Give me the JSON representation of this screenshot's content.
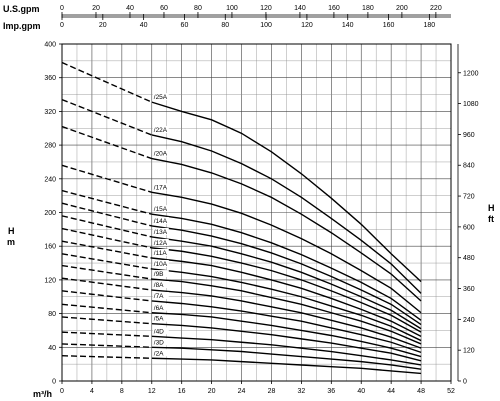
{
  "chart_data": {
    "type": "line",
    "axes": {
      "flow_m3h": {
        "label": "m³/h",
        "range": [
          0,
          52
        ],
        "ticks": [
          "0",
          "4",
          "8",
          "12",
          "16",
          "20",
          "24",
          "28",
          "32",
          "36",
          "40",
          "44",
          "48",
          "52"
        ]
      },
      "us_gpm": {
        "label": "U.S.gpm",
        "range": [
          0,
          228.9
        ],
        "ticks": [
          "0",
          "20",
          "40",
          "60",
          "80",
          "100",
          "120",
          "140",
          "160",
          "180",
          "200",
          "220"
        ]
      },
      "imp_gpm": {
        "label": "Imp.gpm",
        "range": [
          0,
          190.6
        ],
        "ticks": [
          "0",
          "20",
          "40",
          "60",
          "80",
          "100",
          "120",
          "140",
          "160",
          "180"
        ]
      },
      "head_m": {
        "label_line1": "H",
        "label_line2": "m",
        "range": [
          0,
          400
        ],
        "ticks": [
          "0",
          "40",
          "80",
          "120",
          "160",
          "200",
          "240",
          "280",
          "320",
          "360",
          "400"
        ]
      },
      "head_ft": {
        "label_line1": "H",
        "label_line2": "ft",
        "range": [
          0,
          1312
        ],
        "ticks": [
          "0",
          "120",
          "240",
          "360",
          "480",
          "600",
          "720",
          "840",
          "960",
          "1080",
          "1200"
        ]
      }
    },
    "grid": true,
    "dashed_range": [
      0,
      12
    ],
    "solid_range": [
      12,
      48
    ],
    "series": [
      {
        "name": "/25A",
        "x": [
          0,
          12,
          16,
          20,
          24,
          28,
          32,
          36,
          40,
          44,
          48
        ],
        "y": [
          378,
          331,
          320,
          310,
          294,
          272,
          246,
          217,
          186,
          151,
          118
        ]
      },
      {
        "name": "/22A",
        "x": [
          0,
          12,
          16,
          20,
          24,
          28,
          32,
          36,
          40,
          44,
          48
        ],
        "y": [
          334,
          292,
          284,
          273,
          258,
          240,
          218,
          193,
          167,
          139,
          104
        ]
      },
      {
        "name": "/20A",
        "x": [
          0,
          12,
          16,
          20,
          24,
          28,
          32,
          36,
          40,
          44,
          48
        ],
        "y": [
          302,
          264,
          257,
          247,
          234,
          218,
          198,
          176,
          152,
          127,
          95
        ]
      },
      {
        "name": "/17A",
        "x": [
          0,
          12,
          16,
          20,
          24,
          28,
          32,
          36,
          40,
          44,
          48
        ],
        "y": [
          256,
          224,
          218,
          210,
          199,
          185,
          169,
          151,
          131,
          110,
          81
        ]
      },
      {
        "name": "/15A",
        "x": [
          0,
          12,
          16,
          20,
          24,
          28,
          32,
          36,
          40,
          44,
          48
        ],
        "y": [
          226,
          198,
          193,
          186,
          176,
          164,
          150,
          134,
          117,
          98,
          72
        ]
      },
      {
        "name": "/14A",
        "x": [
          0,
          12,
          16,
          20,
          24,
          28,
          32,
          36,
          40,
          44,
          48
        ],
        "y": [
          211,
          184,
          179,
          172,
          163,
          152,
          139,
          124,
          108,
          91,
          67
        ]
      },
      {
        "name": "/13A",
        "x": [
          0,
          12,
          16,
          20,
          24,
          28,
          32,
          36,
          40,
          44,
          48
        ],
        "y": [
          196,
          171,
          166,
          160,
          151,
          141,
          129,
          115,
          100,
          84,
          62
        ]
      },
      {
        "name": "/12A",
        "x": [
          0,
          12,
          16,
          20,
          24,
          28,
          32,
          36,
          40,
          44,
          48
        ],
        "y": [
          181,
          158,
          154,
          148,
          140,
          131,
          120,
          107,
          93,
          78,
          58
        ]
      },
      {
        "name": "/11A",
        "x": [
          0,
          12,
          16,
          20,
          24,
          28,
          32,
          36,
          40,
          44,
          48
        ],
        "y": [
          166,
          146,
          142,
          137,
          129,
          120,
          110,
          98,
          85,
          71,
          53
        ]
      },
      {
        "name": "/10A",
        "x": [
          0,
          12,
          16,
          20,
          24,
          28,
          32,
          36,
          40,
          44,
          48
        ],
        "y": [
          151,
          133,
          129,
          124,
          117,
          109,
          100,
          89,
          78,
          65,
          48
        ]
      },
      {
        "name": "/9B",
        "x": [
          0,
          12,
          16,
          20,
          24,
          28,
          32,
          36,
          40,
          44,
          48
        ],
        "y": [
          137,
          121,
          118,
          113,
          107,
          99,
          91,
          81,
          71,
          59,
          44
        ]
      },
      {
        "name": "/8A",
        "x": [
          0,
          12,
          16,
          20,
          24,
          28,
          32,
          36,
          40,
          44,
          48
        ],
        "y": [
          122,
          108,
          105,
          101,
          95,
          88,
          81,
          72,
          63,
          52,
          39
        ]
      },
      {
        "name": "/7A",
        "x": [
          0,
          12,
          16,
          20,
          24,
          28,
          32,
          36,
          40,
          44,
          48
        ],
        "y": [
          107,
          95,
          92,
          88,
          83,
          77,
          71,
          63,
          55,
          46,
          34
        ]
      },
      {
        "name": "/6A",
        "x": [
          0,
          12,
          16,
          20,
          24,
          28,
          32,
          36,
          40,
          44,
          48
        ],
        "y": [
          91,
          81,
          79,
          76,
          71,
          66,
          60,
          54,
          47,
          39,
          29
        ]
      },
      {
        "name": "/5A",
        "x": [
          0,
          12,
          16,
          20,
          24,
          28,
          32,
          36,
          40,
          44,
          48
        ],
        "y": [
          76,
          68,
          66,
          63,
          59,
          55,
          50,
          45,
          39,
          33,
          24
        ]
      },
      {
        "name": "/4D",
        "x": [
          0,
          12,
          16,
          20,
          24,
          28,
          32,
          36,
          40,
          44,
          48
        ],
        "y": [
          58,
          53,
          51,
          49,
          46,
          43,
          39,
          35,
          30,
          25,
          19
        ]
      },
      {
        "name": "/3D",
        "x": [
          0,
          12,
          16,
          20,
          24,
          28,
          32,
          36,
          40,
          44,
          48
        ],
        "y": [
          44,
          40,
          39,
          37,
          35,
          32,
          29,
          26,
          23,
          19,
          14
        ]
      },
      {
        "name": "/2A",
        "x": [
          0,
          12,
          16,
          20,
          24,
          28,
          32,
          36,
          40,
          44,
          48
        ],
        "y": [
          30,
          27,
          26,
          25,
          23,
          21,
          19,
          17,
          15,
          12,
          9
        ]
      }
    ]
  }
}
